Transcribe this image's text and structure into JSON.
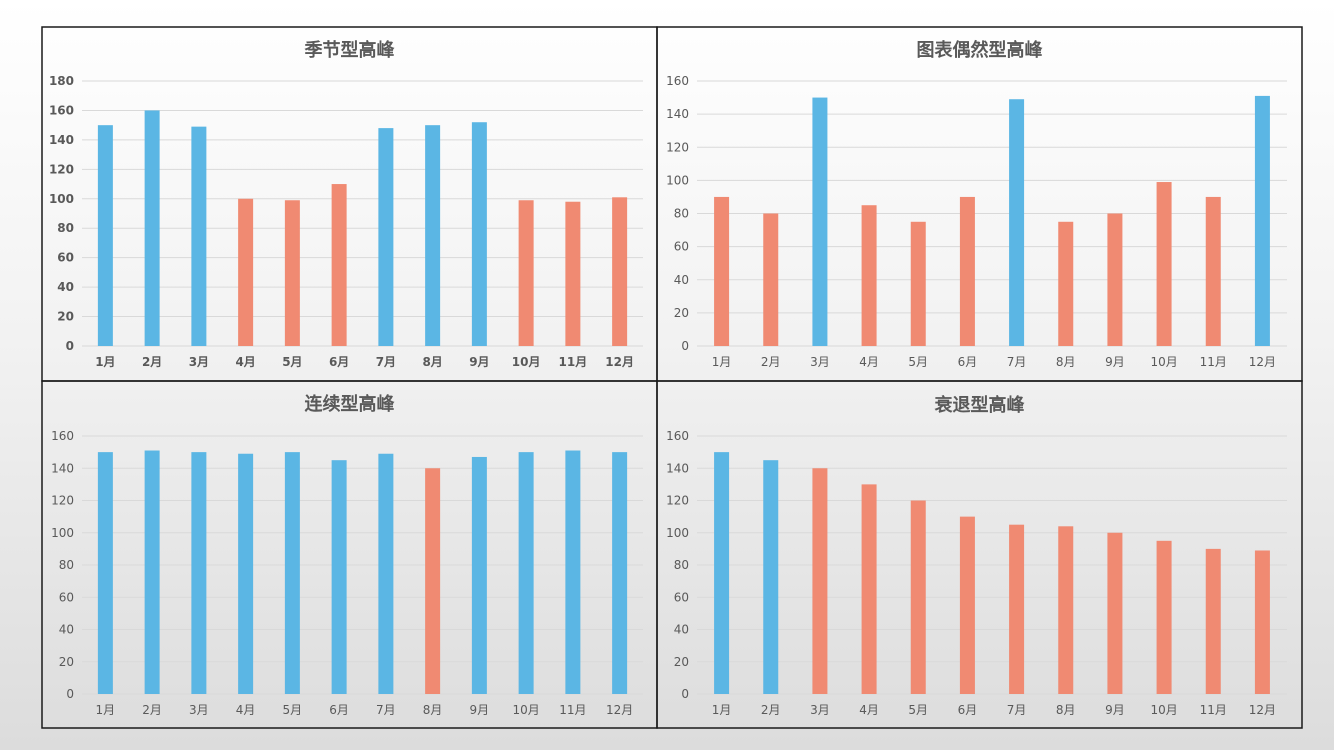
{
  "chart_data": [
    {
      "type": "bar",
      "title": "季节型高峰",
      "categories": [
        "1月",
        "2月",
        "3月",
        "4月",
        "5月",
        "6月",
        "7月",
        "8月",
        "9月",
        "10月",
        "11月",
        "12月"
      ],
      "values": [
        150,
        160,
        149,
        100,
        99,
        110,
        148,
        150,
        152,
        99,
        98,
        101
      ],
      "highlight": [
        true,
        true,
        true,
        false,
        false,
        false,
        true,
        true,
        true,
        false,
        false,
        false
      ],
      "ylim": [
        0,
        180
      ],
      "yticks": [
        0,
        20,
        40,
        60,
        80,
        100,
        120,
        140,
        160,
        180
      ],
      "bold_ticks": true,
      "grid": true
    },
    {
      "type": "bar",
      "title": "图表偶然型高峰",
      "categories": [
        "1月",
        "2月",
        "3月",
        "4月",
        "5月",
        "6月",
        "7月",
        "8月",
        "9月",
        "10月",
        "11月",
        "12月"
      ],
      "values": [
        90,
        80,
        150,
        85,
        75,
        90,
        149,
        75,
        80,
        99,
        90,
        151
      ],
      "highlight": [
        false,
        false,
        true,
        false,
        false,
        false,
        true,
        false,
        false,
        false,
        false,
        true
      ],
      "ylim": [
        0,
        160
      ],
      "yticks": [
        0,
        20,
        40,
        60,
        80,
        100,
        120,
        140,
        160
      ],
      "bold_ticks": false,
      "grid": true
    },
    {
      "type": "bar",
      "title": "连续型高峰",
      "categories": [
        "1月",
        "2月",
        "3月",
        "4月",
        "5月",
        "6月",
        "7月",
        "8月",
        "9月",
        "10月",
        "11月",
        "12月"
      ],
      "values": [
        150,
        151,
        150,
        149,
        150,
        145,
        149,
        140,
        147,
        150,
        151,
        150
      ],
      "highlight": [
        true,
        true,
        true,
        true,
        true,
        true,
        true,
        false,
        true,
        true,
        true,
        true
      ],
      "ylim": [
        0,
        160
      ],
      "yticks": [
        0,
        20,
        40,
        60,
        80,
        100,
        120,
        140,
        160
      ],
      "bold_ticks": false,
      "grid": true
    },
    {
      "type": "bar",
      "title": "衰退型高峰",
      "categories": [
        "1月",
        "2月",
        "3月",
        "4月",
        "5月",
        "6月",
        "7月",
        "8月",
        "9月",
        "10月",
        "11月",
        "12月"
      ],
      "values": [
        150,
        145,
        140,
        130,
        120,
        110,
        105,
        104,
        100,
        95,
        90,
        89
      ],
      "highlight": [
        true,
        true,
        false,
        false,
        false,
        false,
        false,
        false,
        false,
        false,
        false,
        false
      ],
      "ylim": [
        0,
        160
      ],
      "yticks": [
        0,
        20,
        40,
        60,
        80,
        100,
        120,
        140,
        160
      ],
      "bold_ticks": false,
      "grid": true
    }
  ],
  "colors": {
    "highlight": "#5bb6e4",
    "normal": "#f08a72",
    "grid": "#d9d9d9",
    "text": "#595959",
    "border": "#1a1a1a"
  }
}
